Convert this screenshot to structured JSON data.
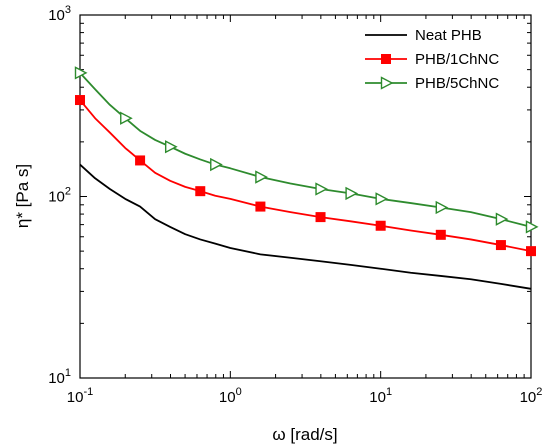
{
  "chart_data": {
    "type": "line",
    "title": "",
    "xlabel": "ω [rad/s]",
    "ylabel": "η* [Pa s]",
    "xscale": "log",
    "yscale": "log",
    "xlim": [
      0.1,
      100
    ],
    "ylim": [
      10,
      1000
    ],
    "x_ticks": [
      {
        "base": "10",
        "exp": "-1",
        "value": 0.1
      },
      {
        "base": "10",
        "exp": "0",
        "value": 1
      },
      {
        "base": "10",
        "exp": "1",
        "value": 10
      },
      {
        "base": "10",
        "exp": "2",
        "value": 100
      }
    ],
    "y_ticks": [
      {
        "base": "10",
        "exp": "1",
        "value": 10
      },
      {
        "base": "10",
        "exp": "2",
        "value": 100
      },
      {
        "base": "10",
        "exp": "3",
        "value": 1000
      }
    ],
    "grid": false,
    "legend_position": "top-right",
    "series": [
      {
        "name": "Neat PHB",
        "color": "#000000",
        "marker": "none",
        "x": [
          0.1,
          0.126,
          0.158,
          0.2,
          0.251,
          0.316,
          0.398,
          0.501,
          0.631,
          0.794,
          1,
          1.585,
          2.512,
          3.981,
          6.31,
          10,
          15.85,
          25.12,
          39.81,
          63.1,
          100
        ],
        "y": [
          150,
          126,
          110,
          97,
          88,
          75,
          68,
          62,
          58,
          55,
          52,
          48,
          46,
          44,
          42,
          40,
          38,
          36.5,
          35,
          33,
          31
        ]
      },
      {
        "name": "PHB/1ChNC",
        "color": "#ff0000",
        "marker": "square",
        "x": [
          0.1,
          0.126,
          0.158,
          0.2,
          0.251,
          0.316,
          0.398,
          0.501,
          0.631,
          0.794,
          1,
          1.585,
          2.512,
          3.981,
          6.31,
          10,
          15.85,
          25.12,
          39.81,
          63.1,
          100
        ],
        "y": [
          340,
          270,
          225,
          185,
          158,
          135,
          122,
          113,
          107,
          101,
          97,
          88,
          82,
          77,
          73,
          69,
          65,
          61.5,
          58,
          54,
          50
        ],
        "marker_x": [
          0.1,
          0.251,
          0.631,
          1.585,
          3.981,
          10,
          25.12,
          63.1,
          100
        ],
        "marker_y": [
          340,
          158,
          107,
          88,
          77,
          69,
          61.5,
          54,
          50
        ]
      },
      {
        "name": "PHB/5ChNC",
        "color": "#2e8b2e",
        "marker": "triangle-right-open",
        "x": [
          0.1,
          0.126,
          0.158,
          0.2,
          0.251,
          0.316,
          0.398,
          0.501,
          0.631,
          0.794,
          1,
          1.585,
          2.512,
          3.981,
          6.31,
          10,
          15.85,
          25.12,
          39.81,
          63.1,
          100
        ],
        "y": [
          480,
          390,
          320,
          270,
          230,
          205,
          188,
          172,
          160,
          150,
          143,
          128,
          118,
          110,
          104,
          97,
          92,
          87,
          82,
          75,
          68
        ],
        "marker_x": [
          0.1,
          0.2,
          0.398,
          0.794,
          1.585,
          3.981,
          6.31,
          10,
          25.12,
          63.1,
          100
        ],
        "marker_y": [
          480,
          270,
          188,
          150,
          128,
          110,
          104,
          97,
          87,
          75,
          68
        ]
      }
    ]
  }
}
